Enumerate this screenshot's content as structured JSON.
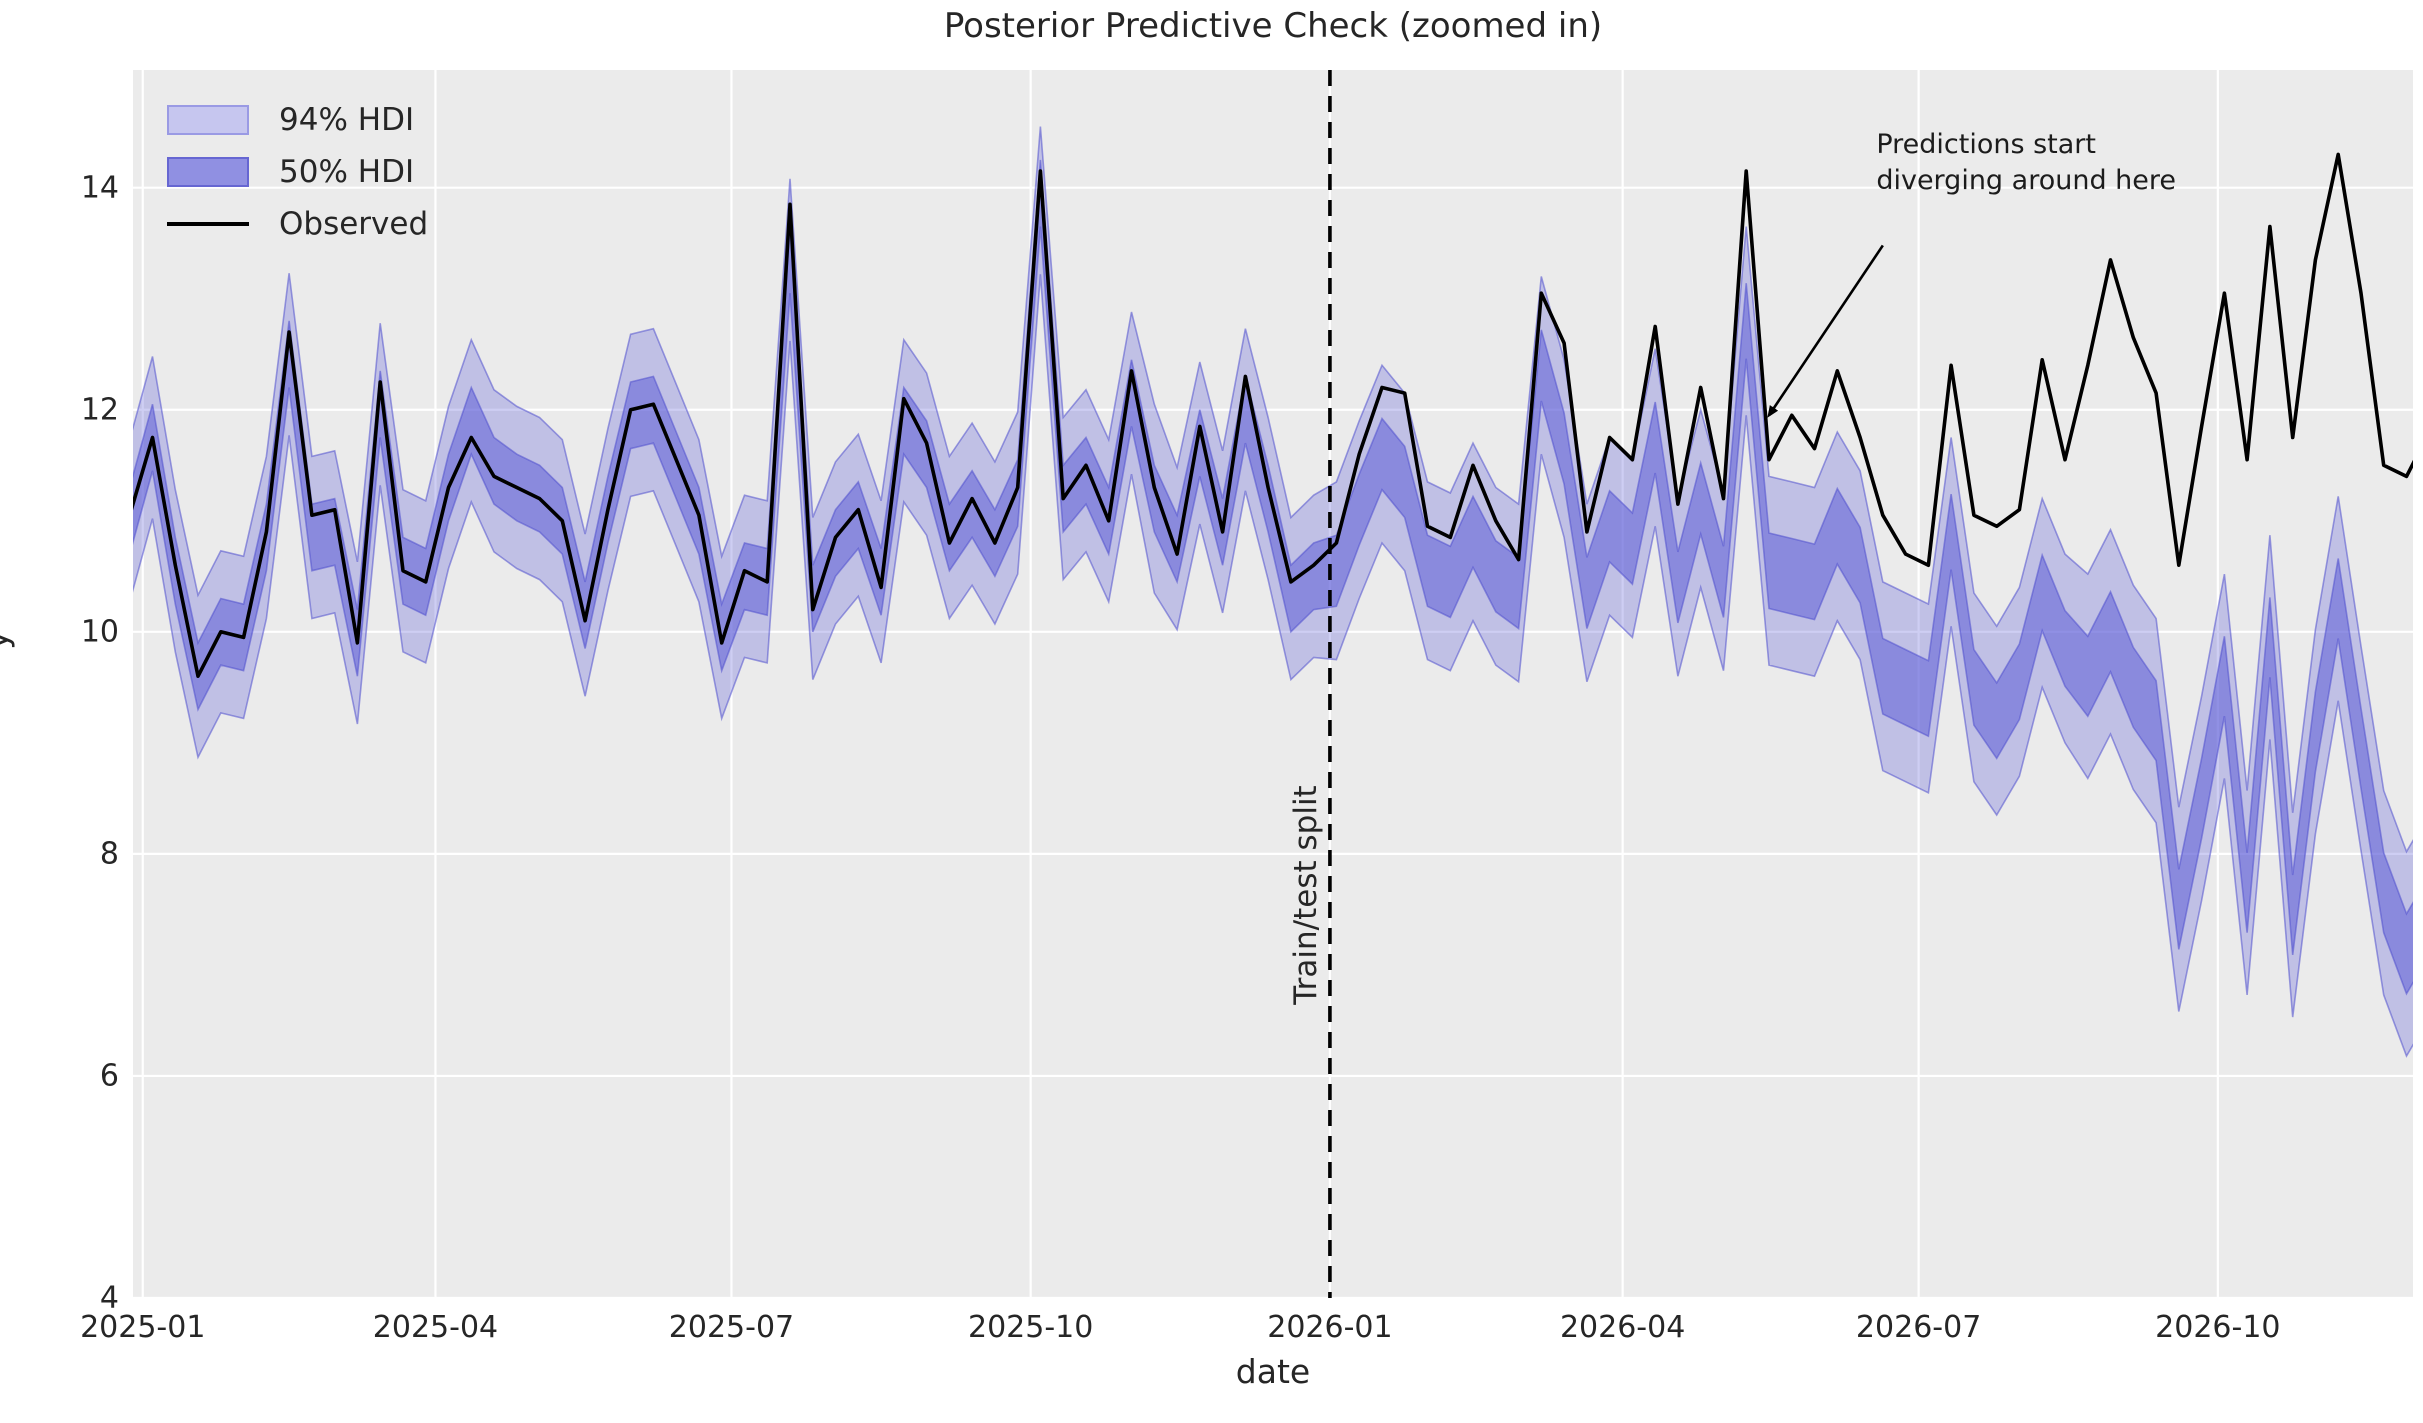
{
  "chart_data": {
    "type": "line",
    "title": "Posterior Predictive Check (zoomed in)",
    "xlabel": "date",
    "ylabel": "y",
    "xlim": [
      "2024-12-29",
      "2026-11-30"
    ],
    "ylim": [
      4,
      15.06
    ],
    "grid": true,
    "legend_position": "upper left",
    "legend": [
      "94% HDI",
      "50% HDI",
      "Observed"
    ],
    "colors": {
      "axes_background": "#ebebeb",
      "grid": "#ffffff",
      "observed_line": "#000000",
      "hdi94_fill": "rgba(92,92,215,0.30)",
      "hdi50_fill": "rgba(92,92,215,0.55)",
      "hdi_edge": "rgba(80,80,205,0.55)",
      "split_line": "#000000"
    },
    "yticks": [
      4,
      6,
      8,
      10,
      12,
      14
    ],
    "xticks": [
      {
        "label": "2025-01",
        "date": "2025-01-01"
      },
      {
        "label": "2025-04",
        "date": "2025-04-01"
      },
      {
        "label": "2025-07",
        "date": "2025-07-01"
      },
      {
        "label": "2025-10",
        "date": "2025-10-01"
      },
      {
        "label": "2026-01",
        "date": "2026-01-01"
      },
      {
        "label": "2026-04",
        "date": "2026-04-01"
      },
      {
        "label": "2026-07",
        "date": "2026-07-01"
      },
      {
        "label": "2026-10",
        "date": "2026-10-01"
      }
    ],
    "split": {
      "label": "Train/test split",
      "date": "2026-01-01"
    },
    "annotation": {
      "text": "Predictions start\ndiverging around here",
      "text_pos": [
        "2026-06-18",
        14.55
      ],
      "arrow_start": [
        "2026-06-20",
        13.48
      ],
      "arrow_end": [
        "2026-05-16",
        11.95
      ]
    },
    "x": [
      "2024-12-28",
      "2025-01-04",
      "2025-01-11",
      "2025-01-18",
      "2025-01-25",
      "2025-02-01",
      "2025-02-08",
      "2025-02-15",
      "2025-02-22",
      "2025-03-01",
      "2025-03-08",
      "2025-03-15",
      "2025-03-22",
      "2025-03-29",
      "2025-04-05",
      "2025-04-12",
      "2025-04-19",
      "2025-04-26",
      "2025-05-03",
      "2025-05-10",
      "2025-05-17",
      "2025-05-24",
      "2025-05-31",
      "2025-06-07",
      "2025-06-14",
      "2025-06-21",
      "2025-06-28",
      "2025-07-05",
      "2025-07-12",
      "2025-07-19",
      "2025-07-26",
      "2025-08-02",
      "2025-08-09",
      "2025-08-16",
      "2025-08-23",
      "2025-08-30",
      "2025-09-06",
      "2025-09-13",
      "2025-09-20",
      "2025-09-27",
      "2025-10-04",
      "2025-10-11",
      "2025-10-18",
      "2025-10-25",
      "2025-11-01",
      "2025-11-08",
      "2025-11-15",
      "2025-11-22",
      "2025-11-29",
      "2025-12-06",
      "2025-12-13",
      "2025-12-20",
      "2025-12-27",
      "2026-01-03",
      "2026-01-10",
      "2026-01-17",
      "2026-01-24",
      "2026-01-31",
      "2026-02-07",
      "2026-02-14",
      "2026-02-21",
      "2026-02-28",
      "2026-03-07",
      "2026-03-14",
      "2026-03-21",
      "2026-03-28",
      "2026-04-04",
      "2026-04-11",
      "2026-04-18",
      "2026-04-25",
      "2026-05-02",
      "2026-05-09",
      "2026-05-16",
      "2026-05-23",
      "2026-05-30",
      "2026-06-06",
      "2026-06-13",
      "2026-06-20",
      "2026-06-27",
      "2026-07-04",
      "2026-07-11",
      "2026-07-18",
      "2026-07-25",
      "2026-08-01",
      "2026-08-08",
      "2026-08-15",
      "2026-08-22",
      "2026-08-29",
      "2026-09-05",
      "2026-09-12",
      "2026-09-19",
      "2026-09-26",
      "2026-10-03",
      "2026-10-10",
      "2026-10-17",
      "2026-10-24",
      "2026-10-31",
      "2026-11-07",
      "2026-11-14",
      "2026-11-21",
      "2026-11-28",
      "2026-12-05"
    ],
    "series": [
      {
        "name": "Observed",
        "values": [
          11.05,
          11.75,
          10.6,
          9.6,
          10.0,
          9.95,
          10.9,
          12.7,
          11.05,
          11.1,
          9.9,
          12.25,
          10.55,
          10.45,
          11.3,
          11.75,
          11.4,
          11.3,
          11.2,
          11.0,
          10.1,
          11.1,
          12.0,
          12.05,
          11.55,
          11.05,
          9.9,
          10.55,
          10.45,
          13.85,
          10.2,
          10.85,
          11.1,
          10.4,
          12.1,
          11.7,
          10.8,
          11.2,
          10.8,
          11.3,
          14.15,
          11.2,
          11.5,
          11.0,
          12.35,
          11.3,
          10.7,
          11.85,
          10.9,
          12.3,
          11.3,
          10.45,
          10.6,
          10.8,
          11.6,
          12.2,
          12.15,
          10.95,
          10.85,
          11.5,
          11.0,
          10.65,
          13.05,
          12.6,
          10.9,
          11.75,
          11.55,
          12.75,
          11.15,
          12.2,
          11.2,
          14.15,
          11.55,
          11.95,
          11.65,
          12.35,
          11.75,
          11.05,
          10.7,
          10.6,
          12.4,
          11.05,
          10.95,
          11.1,
          12.45,
          11.55,
          12.4,
          13.35,
          12.65,
          12.15,
          10.6,
          11.85,
          13.05,
          11.55,
          13.65,
          11.75,
          13.35,
          14.3,
          13.05,
          11.5,
          11.4,
          11.8
        ]
      },
      {
        "name": "hdi50_lower",
        "values": [
          10.7,
          11.45,
          10.25,
          9.3,
          9.7,
          9.65,
          10.55,
          12.2,
          10.55,
          10.6,
          9.6,
          11.75,
          10.25,
          10.15,
          11.0,
          11.6,
          11.15,
          11.0,
          10.9,
          10.7,
          9.85,
          10.8,
          11.65,
          11.7,
          11.2,
          10.7,
          9.65,
          10.2,
          10.15,
          13.05,
          10.0,
          10.5,
          10.75,
          10.15,
          11.6,
          11.3,
          10.55,
          10.85,
          10.5,
          10.95,
          13.65,
          10.9,
          11.15,
          10.7,
          11.85,
          10.9,
          10.45,
          11.4,
          10.6,
          11.7,
          10.9,
          10.0,
          10.2,
          10.23,
          10.78,
          11.28,
          11.03,
          10.23,
          10.13,
          10.58,
          10.18,
          10.03,
          12.08,
          11.33,
          10.03,
          10.63,
          10.43,
          11.43,
          10.08,
          10.88,
          10.13,
          12.46,
          10.21,
          10.16,
          10.11,
          10.61,
          10.26,
          9.26,
          9.16,
          9.06,
          10.56,
          9.16,
          8.86,
          9.21,
          10.01,
          9.51,
          9.24,
          9.64,
          9.14,
          8.84,
          7.14,
          8.14,
          9.24,
          7.29,
          9.59,
          7.09,
          8.74,
          9.94,
          8.59,
          7.29,
          6.74,
          7.09
        ]
      },
      {
        "name": "hdi50_upper",
        "values": [
          11.3,
          12.05,
          10.85,
          9.9,
          10.3,
          10.25,
          11.15,
          12.8,
          11.15,
          11.2,
          10.2,
          12.35,
          10.85,
          10.75,
          11.6,
          12.2,
          11.75,
          11.6,
          11.5,
          11.3,
          10.45,
          11.4,
          12.25,
          12.3,
          11.8,
          11.3,
          10.25,
          10.8,
          10.75,
          13.65,
          10.6,
          11.1,
          11.35,
          10.75,
          12.2,
          11.9,
          11.15,
          11.45,
          11.1,
          11.55,
          14.25,
          11.5,
          11.75,
          11.3,
          12.45,
          11.5,
          11.05,
          12.0,
          11.2,
          12.3,
          11.5,
          10.6,
          10.8,
          10.87,
          11.42,
          11.92,
          11.67,
          10.87,
          10.77,
          11.22,
          10.82,
          10.67,
          12.72,
          11.97,
          10.67,
          11.27,
          11.07,
          12.07,
          10.72,
          11.52,
          10.77,
          13.14,
          10.89,
          10.84,
          10.79,
          11.29,
          10.94,
          9.94,
          9.84,
          9.74,
          11.24,
          9.84,
          9.54,
          9.89,
          10.69,
          10.19,
          9.96,
          10.36,
          9.86,
          9.56,
          7.86,
          8.86,
          9.96,
          8.01,
          10.31,
          7.81,
          9.46,
          10.66,
          9.31,
          8.01,
          7.46,
          7.81
        ]
      },
      {
        "name": "hdi94_lower",
        "values": [
          10.27,
          11.02,
          9.82,
          8.87,
          9.27,
          9.22,
          10.12,
          11.77,
          10.12,
          10.17,
          9.17,
          11.32,
          9.82,
          9.72,
          10.57,
          11.17,
          10.72,
          10.57,
          10.47,
          10.27,
          9.42,
          10.37,
          11.22,
          11.27,
          10.77,
          10.27,
          9.22,
          9.77,
          9.72,
          12.62,
          9.57,
          10.07,
          10.32,
          9.72,
          11.17,
          10.87,
          10.12,
          10.42,
          10.07,
          10.52,
          13.22,
          10.47,
          10.72,
          10.27,
          11.42,
          10.35,
          10.02,
          10.97,
          10.17,
          11.27,
          10.47,
          9.57,
          9.77,
          9.75,
          10.3,
          10.8,
          10.55,
          9.75,
          9.65,
          10.1,
          9.7,
          9.55,
          11.6,
          10.85,
          9.55,
          10.15,
          9.95,
          10.95,
          9.6,
          10.4,
          9.65,
          11.95,
          9.7,
          9.65,
          9.6,
          10.1,
          9.75,
          8.75,
          8.65,
          8.55,
          10.05,
          8.65,
          8.35,
          8.7,
          9.5,
          9.0,
          8.68,
          9.08,
          8.58,
          8.28,
          6.58,
          7.58,
          8.68,
          6.73,
          9.03,
          6.53,
          8.18,
          9.38,
          8.03,
          6.73,
          6.18,
          6.53
        ]
      },
      {
        "name": "hdi94_upper",
        "values": [
          11.73,
          12.48,
          11.28,
          10.33,
          10.73,
          10.68,
          11.58,
          13.23,
          11.58,
          11.63,
          10.63,
          12.78,
          11.28,
          11.18,
          12.03,
          12.63,
          12.18,
          12.03,
          11.93,
          11.73,
          10.88,
          11.83,
          12.68,
          12.73,
          12.23,
          11.73,
          10.68,
          11.23,
          11.18,
          14.08,
          11.03,
          11.53,
          11.78,
          11.18,
          12.63,
          12.33,
          11.58,
          11.88,
          11.53,
          11.98,
          14.55,
          11.93,
          12.18,
          11.73,
          12.88,
          12.05,
          11.48,
          12.43,
          11.63,
          12.73,
          11.93,
          11.03,
          11.23,
          11.35,
          11.9,
          12.4,
          12.15,
          11.35,
          11.25,
          11.7,
          11.3,
          11.15,
          13.2,
          12.45,
          11.15,
          11.75,
          11.55,
          12.55,
          11.2,
          12.0,
          11.25,
          13.65,
          11.4,
          11.35,
          11.3,
          11.8,
          11.45,
          10.45,
          10.35,
          10.25,
          11.75,
          10.35,
          10.05,
          10.4,
          11.2,
          10.7,
          10.52,
          10.92,
          10.42,
          10.12,
          8.42,
          9.42,
          10.52,
          8.57,
          10.87,
          8.37,
          10.02,
          11.22,
          9.87,
          8.57,
          8.02,
          8.37
        ]
      }
    ]
  }
}
